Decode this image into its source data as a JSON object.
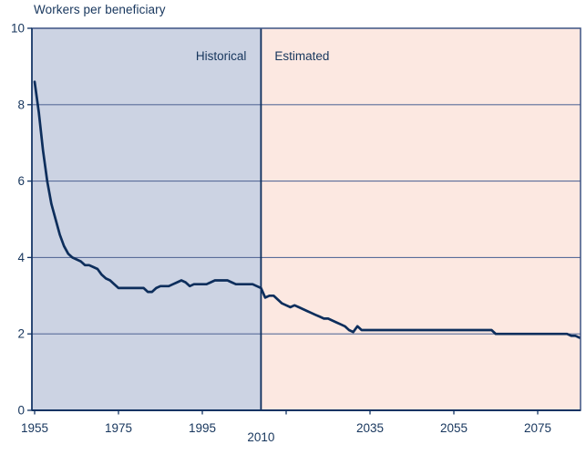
{
  "title": "Workers per beneficiary",
  "colors": {
    "background": "#ffffff",
    "historical_fill": "#ccd3e3",
    "estimated_fill": "#fce8e1",
    "line": "#0d2e5c",
    "grid": "#5a6d9a",
    "border": "#3d5384",
    "axis": "#123363",
    "divider": "#0d2e5c",
    "text": "#17365d"
  },
  "regions": [
    {
      "name": "Historical",
      "label": "Historical"
    },
    {
      "name": "Estimated",
      "label": "Estimated"
    }
  ],
  "divider_year": 2009,
  "divider_label": "2010",
  "axes": {
    "y": {
      "min": 0,
      "max": 10,
      "ticks": [
        0,
        2,
        4,
        6,
        8,
        10
      ]
    },
    "x": {
      "min": 1954.3,
      "max": 2085.3,
      "ticks": [
        {
          "year": 1955,
          "label": "1955"
        },
        {
          "year": 1975,
          "label": "1975"
        },
        {
          "year": 1995,
          "label": "1995"
        },
        {
          "year": 2015,
          "label": ""
        },
        {
          "year": 2035,
          "label": "2035"
        },
        {
          "year": 2055,
          "label": "2055"
        },
        {
          "year": 2075,
          "label": "2075"
        }
      ]
    }
  },
  "chart_data": {
    "type": "line",
    "title": "Workers per beneficiary",
    "xlabel": "",
    "ylabel": "Workers per beneficiary",
    "xlim": [
      1955,
      2085
    ],
    "ylim": [
      0,
      10
    ],
    "grid": "horizontal",
    "legend": "none",
    "annotations": [
      "Historical",
      "Estimated"
    ],
    "series": [
      {
        "name": "Workers per beneficiary",
        "points": [
          [
            1955,
            8.6
          ],
          [
            1956,
            7.8
          ],
          [
            1957,
            6.8
          ],
          [
            1958,
            6.0
          ],
          [
            1959,
            5.4
          ],
          [
            1960,
            5.0
          ],
          [
            1961,
            4.6
          ],
          [
            1962,
            4.3
          ],
          [
            1963,
            4.1
          ],
          [
            1964,
            4.0
          ],
          [
            1965,
            3.95
          ],
          [
            1966,
            3.9
          ],
          [
            1967,
            3.8
          ],
          [
            1968,
            3.8
          ],
          [
            1969,
            3.75
          ],
          [
            1970,
            3.7
          ],
          [
            1971,
            3.55
          ],
          [
            1972,
            3.45
          ],
          [
            1973,
            3.4
          ],
          [
            1974,
            3.3
          ],
          [
            1975,
            3.2
          ],
          [
            1976,
            3.2
          ],
          [
            1977,
            3.2
          ],
          [
            1978,
            3.2
          ],
          [
            1979,
            3.2
          ],
          [
            1980,
            3.2
          ],
          [
            1981,
            3.2
          ],
          [
            1982,
            3.1
          ],
          [
            1983,
            3.1
          ],
          [
            1984,
            3.2
          ],
          [
            1985,
            3.25
          ],
          [
            1986,
            3.25
          ],
          [
            1987,
            3.25
          ],
          [
            1988,
            3.3
          ],
          [
            1989,
            3.35
          ],
          [
            1990,
            3.4
          ],
          [
            1991,
            3.35
          ],
          [
            1992,
            3.25
          ],
          [
            1993,
            3.3
          ],
          [
            1994,
            3.3
          ],
          [
            1995,
            3.3
          ],
          [
            1996,
            3.3
          ],
          [
            1997,
            3.35
          ],
          [
            1998,
            3.4
          ],
          [
            1999,
            3.4
          ],
          [
            2000,
            3.4
          ],
          [
            2001,
            3.4
          ],
          [
            2002,
            3.35
          ],
          [
            2003,
            3.3
          ],
          [
            2004,
            3.3
          ],
          [
            2005,
            3.3
          ],
          [
            2006,
            3.3
          ],
          [
            2007,
            3.3
          ],
          [
            2008,
            3.25
          ],
          [
            2009,
            3.2
          ],
          [
            2010,
            2.95
          ],
          [
            2011,
            3.0
          ],
          [
            2012,
            3.0
          ],
          [
            2013,
            2.9
          ],
          [
            2014,
            2.8
          ],
          [
            2015,
            2.75
          ],
          [
            2016,
            2.7
          ],
          [
            2017,
            2.75
          ],
          [
            2018,
            2.7
          ],
          [
            2019,
            2.65
          ],
          [
            2020,
            2.6
          ],
          [
            2021,
            2.55
          ],
          [
            2022,
            2.5
          ],
          [
            2023,
            2.45
          ],
          [
            2024,
            2.4
          ],
          [
            2025,
            2.4
          ],
          [
            2026,
            2.35
          ],
          [
            2027,
            2.3
          ],
          [
            2028,
            2.25
          ],
          [
            2029,
            2.2
          ],
          [
            2030,
            2.1
          ],
          [
            2031,
            2.05
          ],
          [
            2032,
            2.2
          ],
          [
            2033,
            2.1
          ],
          [
            2035,
            2.1
          ],
          [
            2040,
            2.1
          ],
          [
            2045,
            2.1
          ],
          [
            2050,
            2.1
          ],
          [
            2055,
            2.1
          ],
          [
            2060,
            2.1
          ],
          [
            2064,
            2.1
          ],
          [
            2065,
            2.0
          ],
          [
            2070,
            2.0
          ],
          [
            2075,
            2.0
          ],
          [
            2080,
            2.0
          ],
          [
            2082,
            2.0
          ],
          [
            2083,
            1.95
          ],
          [
            2084,
            1.95
          ],
          [
            2085,
            1.9
          ]
        ]
      }
    ]
  }
}
